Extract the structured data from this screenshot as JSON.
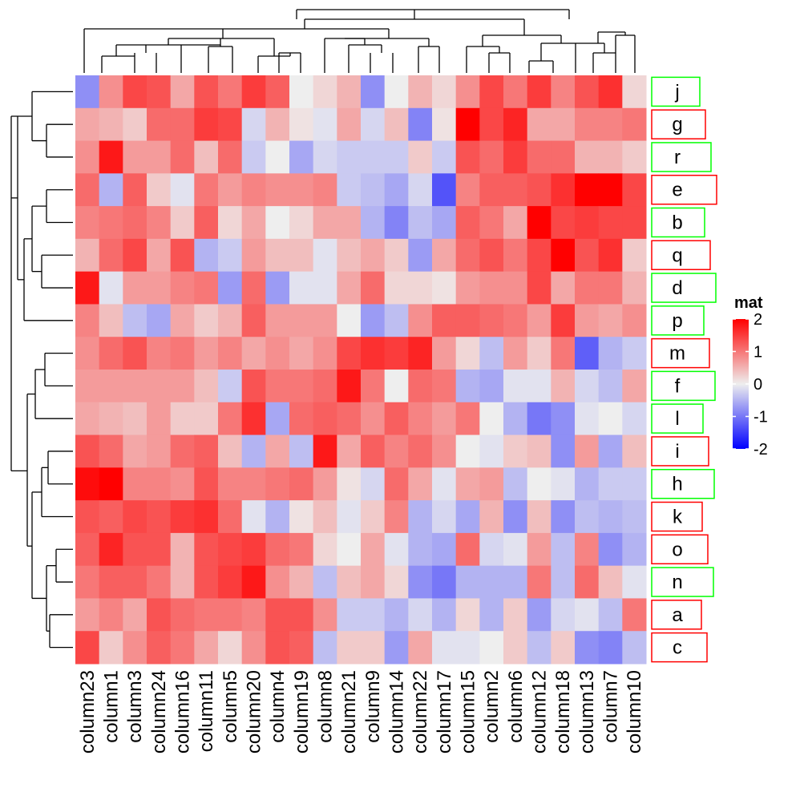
{
  "chart_data": {
    "type": "heatmap",
    "legend": {
      "title": "mat",
      "ticks": [
        2,
        1,
        0,
        -1,
        -2
      ],
      "tick_labels": [
        "2",
        "1",
        "0",
        "-1",
        "-2"
      ],
      "colors": {
        "low": "#0000ff",
        "mid": "#eeeeee",
        "high": "#ff0000"
      },
      "range": [
        -2,
        2
      ],
      "placement": "right"
    },
    "columns": [
      "column23",
      "column1",
      "column3",
      "column24",
      "column16",
      "column11",
      "column5",
      "column20",
      "column4",
      "column19",
      "column8",
      "column21",
      "column9",
      "column14",
      "column22",
      "column17",
      "column15",
      "column2",
      "column6",
      "column12",
      "column18",
      "column13",
      "column7",
      "column10"
    ],
    "rows": [
      {
        "label": "j",
        "box_color": "#00ff00",
        "values": [
          -0.8,
          0.8,
          1.4,
          1.3,
          0.6,
          1.3,
          1.0,
          1.5,
          1.2,
          0,
          0.2,
          0.5,
          -0.8,
          0,
          0.5,
          0.2,
          0.8,
          1.4,
          1.0,
          1.5,
          0.9,
          1.3,
          1.6,
          0.2
        ]
      },
      {
        "label": "g",
        "box_color": "#ff0000",
        "values": [
          0.6,
          0.5,
          0.3,
          1.1,
          1.1,
          1.5,
          1.4,
          -0.2,
          0.5,
          0.1,
          -0.1,
          0.6,
          -0.2,
          0.4,
          -0.9,
          0.1,
          2.0,
          1.4,
          1.7,
          0.6,
          0.6,
          0.9,
          0.9,
          1.0
        ]
      },
      {
        "label": "r",
        "box_color": "#00ff00",
        "values": [
          0.8,
          1.8,
          0.7,
          0.7,
          1.1,
          0.4,
          1.1,
          -0.3,
          0,
          -0.6,
          -0.2,
          -0.3,
          -0.3,
          -0.3,
          0.3,
          -0.3,
          1.3,
          1.1,
          1.5,
          1.1,
          1.1,
          0.5,
          0.5,
          0.3
        ]
      },
      {
        "label": "e",
        "box_color": "#ff0000",
        "values": [
          1.1,
          -0.5,
          1.2,
          0.3,
          -0.1,
          1.0,
          0.7,
          0.9,
          0.8,
          0.8,
          0.9,
          -0.3,
          -0.4,
          -0.6,
          -0.2,
          -1.3,
          0.9,
          1.2,
          1.2,
          1.3,
          1.6,
          2.0,
          2.0,
          1.4
        ]
      },
      {
        "label": "b",
        "box_color": "#00ff00",
        "values": [
          0.9,
          1.0,
          1.1,
          0.9,
          0.3,
          1.2,
          0.2,
          0.6,
          0,
          0.2,
          0.6,
          0.6,
          -0.5,
          -0.9,
          -0.4,
          -0.6,
          1.2,
          1.0,
          0.6,
          2.0,
          1.4,
          1.5,
          1.4,
          1.4
        ]
      },
      {
        "label": "q",
        "box_color": "#ff0000",
        "values": [
          0.5,
          1.1,
          1.4,
          0.6,
          1.3,
          -0.5,
          -0.3,
          0.7,
          0.4,
          0.4,
          -0.1,
          0.4,
          0.6,
          0.3,
          -0.7,
          0.6,
          1.1,
          1.3,
          1.0,
          1.4,
          2.0,
          1.3,
          1.6,
          0.3
        ]
      },
      {
        "label": "d",
        "box_color": "#00ff00",
        "values": [
          1.8,
          -0.1,
          0.7,
          0.7,
          0.9,
          1.0,
          -0.7,
          1.1,
          -0.7,
          -0.1,
          -0.1,
          0.6,
          1.1,
          0.2,
          0.2,
          0.1,
          0.7,
          0.8,
          0.8,
          1.4,
          0.6,
          1.0,
          1.0,
          0.5
        ]
      },
      {
        "label": "p",
        "box_color": "#00ff00",
        "values": [
          0.9,
          0.4,
          -0.4,
          -0.6,
          0.6,
          0.3,
          0.5,
          1.2,
          0.7,
          0.7,
          0.7,
          0,
          -0.7,
          -0.4,
          0.8,
          1.2,
          1.2,
          1.1,
          1.0,
          0.7,
          1.5,
          0.7,
          0.6,
          0.8
        ]
      },
      {
        "label": "m",
        "box_color": "#ff0000",
        "values": [
          0.8,
          1.1,
          1.3,
          0.9,
          1.0,
          0.7,
          0.9,
          0.6,
          0.8,
          0.6,
          0.8,
          1.4,
          1.6,
          1.5,
          1.7,
          0.7,
          0.2,
          -0.4,
          0.7,
          0.3,
          1.0,
          -1.2,
          -0.5,
          -0.3
        ]
      },
      {
        "label": "f",
        "box_color": "#00ff00",
        "values": [
          0.7,
          0.7,
          0.7,
          0.7,
          0.7,
          0.4,
          -0.3,
          1.3,
          1.0,
          1.0,
          1.1,
          1.8,
          1.0,
          0,
          1.1,
          1.0,
          -0.5,
          -0.6,
          -0.1,
          -0.1,
          0.5,
          -0.2,
          -0.4,
          0.6
        ]
      },
      {
        "label": "l",
        "box_color": "#00ff00",
        "values": [
          0.6,
          0.5,
          0.4,
          0.7,
          0.3,
          0.3,
          1.0,
          1.6,
          -0.6,
          1.1,
          1.2,
          1.1,
          0.8,
          1.2,
          0.9,
          0.7,
          1.0,
          0,
          -0.5,
          -1.0,
          -0.8,
          -0.1,
          0,
          -0.2
        ]
      },
      {
        "label": "i",
        "box_color": "#ff0000",
        "values": [
          1.3,
          1.1,
          0.6,
          0.7,
          1.1,
          1.2,
          0.4,
          -0.5,
          0.6,
          -0.4,
          1.8,
          0.6,
          1.2,
          0.9,
          1.1,
          0.8,
          0,
          -0.1,
          0.3,
          0.4,
          -0.8,
          0.7,
          -0.6,
          0.4
        ]
      },
      {
        "label": "h",
        "box_color": "#00ff00",
        "values": [
          1.9,
          2.0,
          0.9,
          0.9,
          0.8,
          1.3,
          0.9,
          0.9,
          1.0,
          1.1,
          0.7,
          0.1,
          -0.2,
          1.1,
          0.6,
          -0.1,
          0.6,
          0.7,
          -0.4,
          0,
          -0.1,
          -0.5,
          -0.3,
          -0.3
        ]
      },
      {
        "label": "k",
        "box_color": "#ff0000",
        "values": [
          1.3,
          1.2,
          1.4,
          1.3,
          1.5,
          1.6,
          1.1,
          -0.1,
          -0.5,
          0.1,
          0.4,
          -0.1,
          0.3,
          0.9,
          -0.5,
          -0.2,
          -0.6,
          0.5,
          -0.8,
          0.4,
          -0.8,
          -0.4,
          -0.5,
          -0.4
        ]
      },
      {
        "label": "o",
        "box_color": "#ff0000",
        "values": [
          1.2,
          1.7,
          1.3,
          1.3,
          0.5,
          1.3,
          1.4,
          1.5,
          1.1,
          1.0,
          0.2,
          0,
          0.6,
          -0.1,
          -0.5,
          -0.6,
          1.1,
          -0.2,
          -0.1,
          0.7,
          -0.4,
          0.9,
          -0.8,
          -0.5
        ]
      },
      {
        "label": "n",
        "box_color": "#00ff00",
        "values": [
          1.0,
          1.2,
          1.2,
          1.0,
          0.5,
          1.3,
          1.5,
          1.8,
          0.8,
          0.5,
          -0.4,
          0.4,
          0.6,
          0.2,
          -0.8,
          -1.0,
          -0.5,
          -0.5,
          -0.5,
          1.0,
          -0.4,
          1.1,
          0.4,
          -0.1
        ]
      },
      {
        "label": "a",
        "box_color": "#ff0000",
        "values": [
          0.7,
          0.9,
          0.6,
          1.3,
          1.1,
          1.0,
          1.0,
          0.9,
          1.3,
          1.3,
          0.8,
          -0.3,
          -0.3,
          -0.5,
          -0.2,
          -0.5,
          0.2,
          -0.5,
          0.3,
          -0.7,
          -0.2,
          -0.1,
          -0.4,
          1.0
        ]
      },
      {
        "label": "c",
        "box_color": "#ff0000",
        "values": [
          1.4,
          0.3,
          0.8,
          1.2,
          1.0,
          0.6,
          0.2,
          0.8,
          1.3,
          1.2,
          -0.4,
          0.3,
          0.3,
          -0.7,
          0.6,
          -0.1,
          -0.1,
          0,
          0.3,
          -0.4,
          0.3,
          -0.8,
          -0.9,
          -0.4
        ]
      }
    ]
  }
}
